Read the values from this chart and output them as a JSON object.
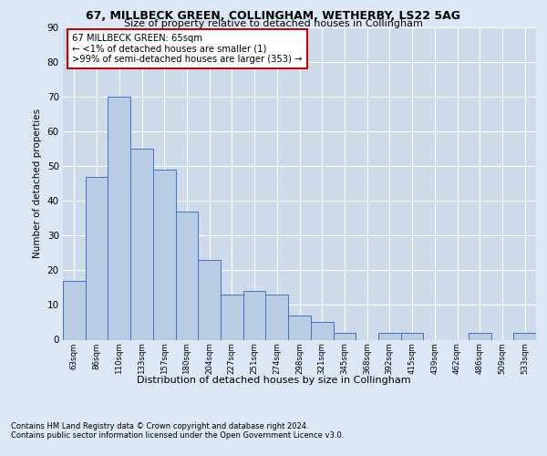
{
  "title1": "67, MILLBECK GREEN, COLLINGHAM, WETHERBY, LS22 5AG",
  "title2": "Size of property relative to detached houses in Collingham",
  "xlabel": "Distribution of detached houses by size in Collingham",
  "ylabel": "Number of detached properties",
  "categories": [
    "63sqm",
    "86sqm",
    "110sqm",
    "133sqm",
    "157sqm",
    "180sqm",
    "204sqm",
    "227sqm",
    "251sqm",
    "274sqm",
    "298sqm",
    "321sqm",
    "345sqm",
    "368sqm",
    "392sqm",
    "415sqm",
    "439sqm",
    "462sqm",
    "486sqm",
    "509sqm",
    "533sqm"
  ],
  "values": [
    17,
    47,
    70,
    55,
    49,
    37,
    23,
    13,
    14,
    13,
    7,
    5,
    2,
    0,
    2,
    2,
    0,
    0,
    2,
    0,
    2
  ],
  "bar_color": "#b8cce4",
  "bar_edge_color": "#4472c4",
  "annotation_box_text": [
    "67 MILLBECK GREEN: 65sqm",
    "← <1% of detached houses are smaller (1)",
    ">99% of semi-detached houses are larger (353) →"
  ],
  "annotation_box_color": "#ffffff",
  "annotation_box_edge_color": "#cc0000",
  "ylim": [
    0,
    90
  ],
  "yticks": [
    0,
    10,
    20,
    30,
    40,
    50,
    60,
    70,
    80,
    90
  ],
  "footer1": "Contains HM Land Registry data © Crown copyright and database right 2024.",
  "footer2": "Contains public sector information licensed under the Open Government Licence v3.0.",
  "bg_color": "#dce8f5",
  "plot_bg_color": "#cddaea",
  "grid_color": "#ffffff"
}
